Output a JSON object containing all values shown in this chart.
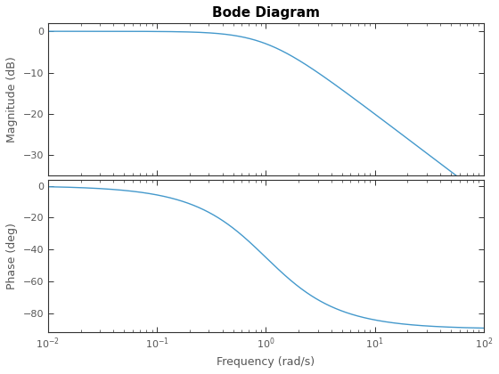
{
  "title": "Bode Diagram",
  "xlabel": "Frequency (rad/s)",
  "ylabel_mag": "Magnitude (dB)",
  "ylabel_phase": "Phase (deg)",
  "freq_range": [
    0.01,
    100
  ],
  "mag_ylim": [
    -35,
    2
  ],
  "phase_ylim": [
    -92,
    4
  ],
  "mag_yticks": [
    0,
    -10,
    -20,
    -30
  ],
  "phase_yticks": [
    0,
    -20,
    -40,
    -60,
    -80
  ],
  "line_color": "#4499CC",
  "line_width": 1.0,
  "background_color": "#ffffff",
  "title_fontsize": 11,
  "label_fontsize": 9,
  "tick_fontsize": 8,
  "tick_color": "#555555",
  "spine_color": "#333333"
}
